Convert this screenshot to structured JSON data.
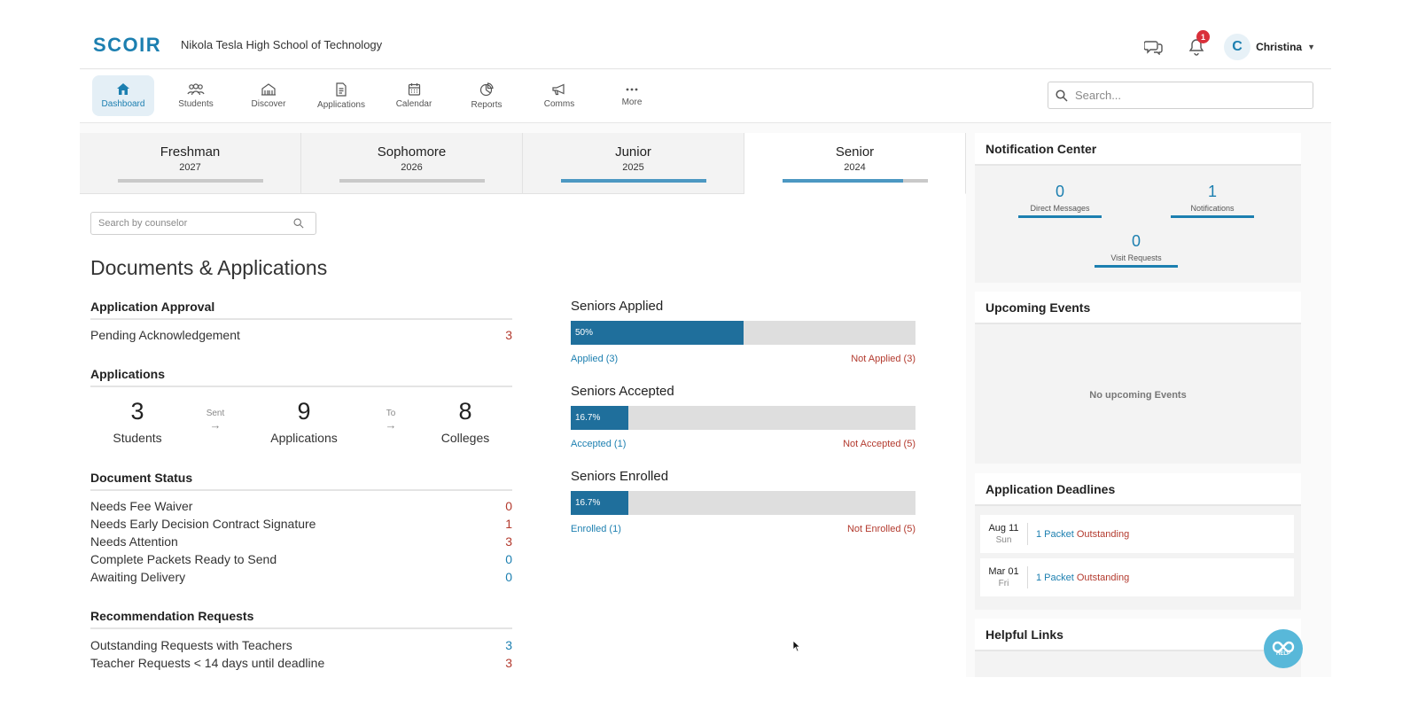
{
  "header": {
    "logo": "SCOIR",
    "school_name": "Nikola Tesla High School of Technology",
    "notification_count": "1",
    "user_initial": "C",
    "user_name": "Christina"
  },
  "nav": {
    "items": [
      {
        "label": "Dashboard",
        "icon": "home-icon"
      },
      {
        "label": "Students",
        "icon": "students-icon"
      },
      {
        "label": "Discover",
        "icon": "building-icon"
      },
      {
        "label": "Applications",
        "icon": "document-icon"
      },
      {
        "label": "Calendar",
        "icon": "calendar-icon"
      },
      {
        "label": "Reports",
        "icon": "pie-chart-icon"
      },
      {
        "label": "Comms",
        "icon": "megaphone-icon"
      },
      {
        "label": "More",
        "icon": "more-icon"
      }
    ],
    "active": "Dashboard",
    "search_placeholder": "Search..."
  },
  "grades": [
    {
      "name": "Freshman",
      "year": "2027",
      "progress": 0
    },
    {
      "name": "Sophomore",
      "year": "2026",
      "progress": 0
    },
    {
      "name": "Junior",
      "year": "2025",
      "progress": 1.0
    },
    {
      "name": "Senior",
      "year": "2024",
      "progress": 0.83
    }
  ],
  "main": {
    "counselor_search_placeholder": "Search by counselor",
    "title": "Documents & Applications",
    "application_approval": {
      "heading": "Application Approval",
      "rows": [
        {
          "label": "Pending Acknowledgement",
          "value": "3"
        }
      ]
    },
    "applications": {
      "heading": "Applications",
      "students_value": "3",
      "students_label": "Students",
      "sent_label": "Sent",
      "applications_value": "9",
      "applications_label": "Applications",
      "to_label": "To",
      "colleges_value": "8",
      "colleges_label": "Colleges"
    },
    "document_status": {
      "heading": "Document Status",
      "rows": [
        {
          "label": "Needs Fee Waiver",
          "value": "0"
        },
        {
          "label": "Needs Early Decision Contract Signature",
          "value": "1"
        },
        {
          "label": "Needs Attention",
          "value": "3"
        },
        {
          "label": "Complete Packets Ready to Send",
          "value": "0"
        },
        {
          "label": "Awaiting Delivery",
          "value": "0"
        }
      ]
    },
    "recommendation_requests": {
      "heading": "Recommendation Requests",
      "rows": [
        {
          "label": "Outstanding Requests with Teachers",
          "value": "3"
        },
        {
          "label": "Teacher Requests < 14 days until deadline",
          "value": "3"
        }
      ]
    },
    "bars": [
      {
        "title": "Seniors Applied",
        "fill": 0.5,
        "percent_label": "50%",
        "left_label": "Applied (3)",
        "right_label": "Not Applied (3)"
      },
      {
        "title": "Seniors Accepted",
        "fill": 0.167,
        "percent_label": "16.7%",
        "left_label": "Accepted (1)",
        "right_label": "Not Accepted (5)"
      },
      {
        "title": "Seniors Enrolled",
        "fill": 0.167,
        "percent_label": "16.7%",
        "left_label": "Enrolled (1)",
        "right_label": "Not Enrolled (5)"
      }
    ]
  },
  "sidebar": {
    "notification_center": {
      "heading": "Notification Center",
      "direct_messages": {
        "value": "0",
        "label": "Direct Messages"
      },
      "notifications": {
        "value": "1",
        "label": "Notifications"
      },
      "visit_requests": {
        "value": "0",
        "label": "Visit Requests"
      }
    },
    "upcoming_events": {
      "heading": "Upcoming Events",
      "empty_text": "No upcoming Events"
    },
    "application_deadlines": {
      "heading": "Application Deadlines",
      "items": [
        {
          "date": "Aug 11",
          "day": "Sun",
          "count_text": "1 Packet",
          "status_text": "Outstanding"
        },
        {
          "date": "Mar 01",
          "day": "Fri",
          "count_text": "1 Packet",
          "status_text": "Outstanding"
        }
      ]
    },
    "helpful_links": {
      "heading": "Helpful Links"
    },
    "help_label": "HELP"
  },
  "colors": {
    "brand": "#1c7fb0",
    "bar_fill": "#1f6f9c",
    "alert": "#b33a2e"
  }
}
